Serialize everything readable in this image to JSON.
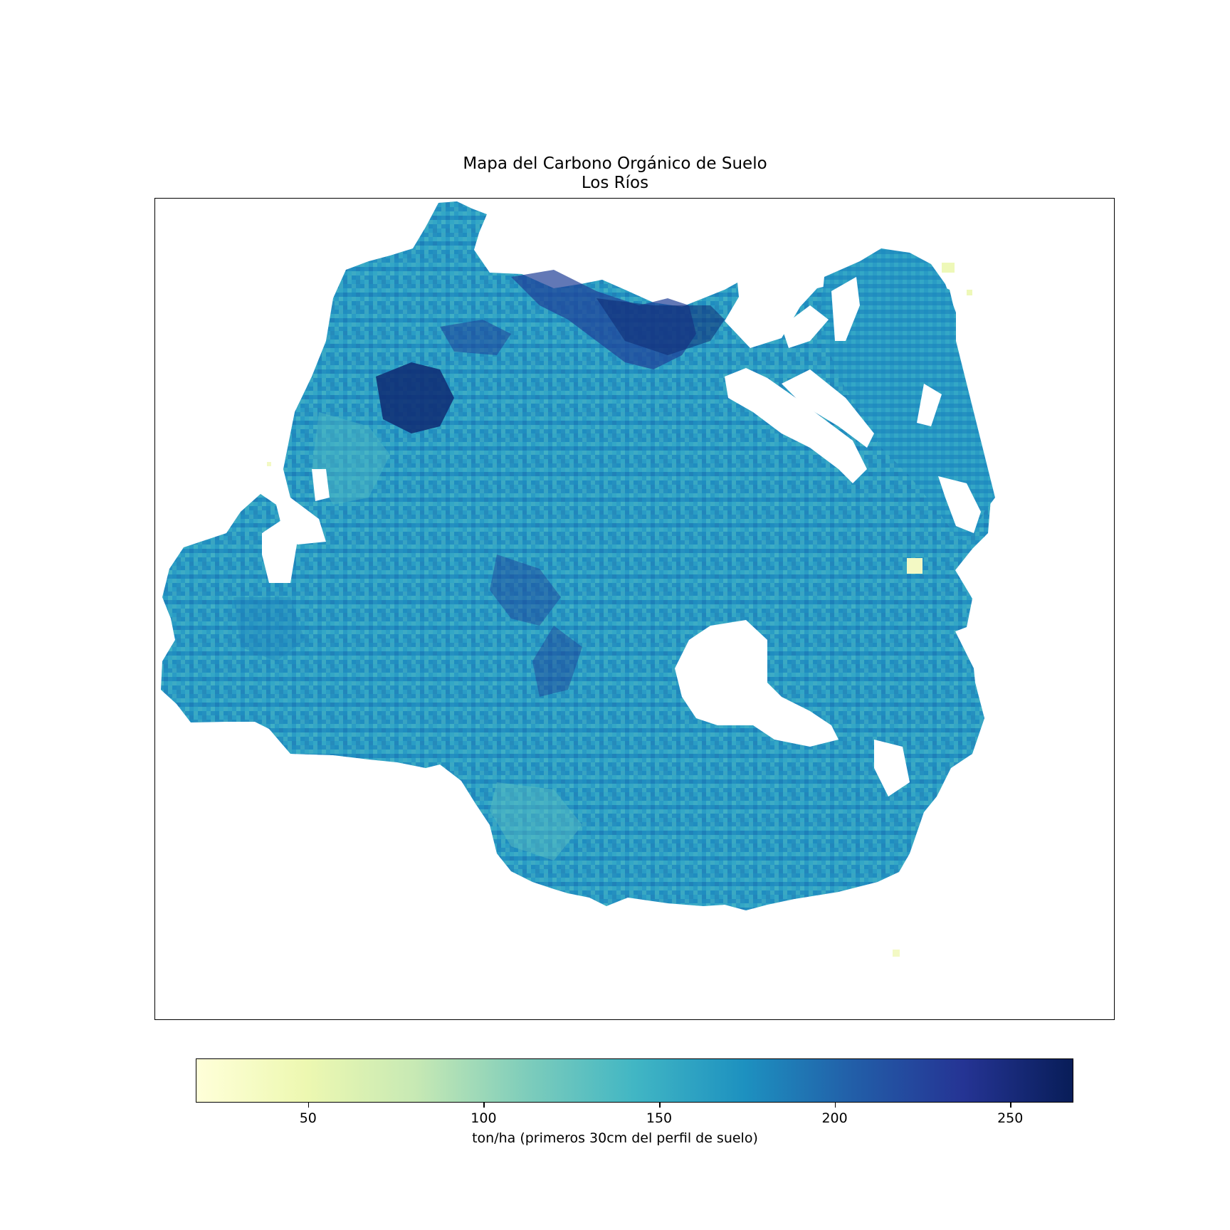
{
  "title": {
    "line1": "Mapa del Carbono Orgánico de Suelo",
    "line2": "Los Ríos"
  },
  "map": {
    "region": "Los Ríos",
    "variable": "Carbono Orgánico de Suelo",
    "colormap": "YlGnBu",
    "typical_range": [
      130,
      190
    ],
    "high_values_area": "north-west and north-central lowlands (~230-265 ton/ha)",
    "low_values_spots": "isolated light-yellow pixels near the north-east and east (~40-60 ton/ha)"
  },
  "colorbar": {
    "min": 18,
    "max": 268,
    "ticks": [
      "50",
      "100",
      "150",
      "200",
      "250"
    ],
    "label": "ton/ha (primeros 30cm del perfil de suelo)",
    "colors": [
      "#ffffd9",
      "#edf8b1",
      "#c7e9b4",
      "#7fcdbb",
      "#41b6c4",
      "#1d91c0",
      "#225ea8",
      "#253494",
      "#081d58"
    ]
  }
}
